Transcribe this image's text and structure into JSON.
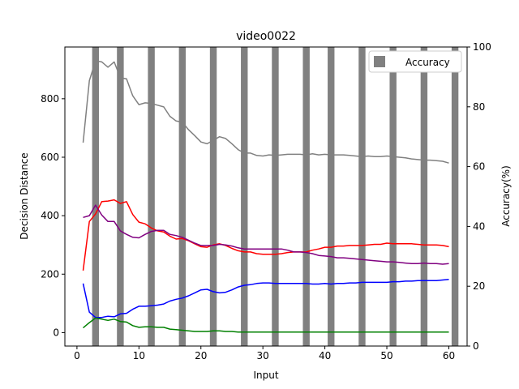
{
  "chart_data": {
    "type": "line",
    "title": "video0022",
    "xlabel": "Input",
    "ylabel": "Decision Distance",
    "ylabel_right": "Accuracy(%)",
    "xlim": [
      -1.95,
      62.95
    ],
    "ylim": [
      -46,
      977
    ],
    "ylim_right": [
      0,
      100
    ],
    "xticks": [
      0,
      10,
      20,
      30,
      40,
      50,
      60
    ],
    "yticks": [
      0,
      200,
      400,
      600,
      800
    ],
    "yticks_right": [
      0,
      20,
      40,
      60,
      80,
      100
    ],
    "legend": {
      "position": "top-right",
      "entries": [
        "Accuracy"
      ]
    },
    "x": [
      1,
      2,
      3,
      4,
      5,
      6,
      7,
      8,
      9,
      10,
      11,
      12,
      13,
      14,
      15,
      16,
      17,
      18,
      19,
      20,
      21,
      22,
      23,
      24,
      25,
      26,
      27,
      28,
      29,
      30,
      31,
      32,
      33,
      34,
      35,
      36,
      37,
      38,
      39,
      40,
      41,
      42,
      43,
      44,
      45,
      46,
      47,
      48,
      49,
      50,
      51,
      52,
      53,
      54,
      55,
      56,
      57,
      58,
      59,
      60
    ],
    "series": [
      {
        "color": "#808080",
        "values": [
          650,
          862,
          930,
          926,
          908,
          926,
          872,
          868,
          810,
          780,
          786,
          784,
          778,
          772,
          740,
          724,
          720,
          694,
          674,
          652,
          646,
          658,
          670,
          664,
          646,
          626,
          614,
          614,
          606,
          604,
          608,
          606,
          608,
          610,
          610,
          610,
          608,
          612,
          608,
          610,
          608,
          608,
          608,
          606,
          604,
          602,
          604,
          602,
          602,
          604,
          602,
          600,
          598,
          594,
          592,
          590,
          590,
          588,
          586,
          580
        ]
      },
      {
        "color": "#ff0000",
        "values": [
          212,
          380,
          406,
          448,
          450,
          454,
          442,
          448,
          404,
          378,
          372,
          358,
          348,
          344,
          330,
          320,
          322,
          314,
          304,
          294,
          292,
          300,
          304,
          298,
          288,
          280,
          276,
          276,
          270,
          268,
          268,
          268,
          270,
          274,
          276,
          276,
          276,
          282,
          286,
          292,
          292,
          296,
          296,
          298,
          298,
          298,
          300,
          302,
          302,
          306,
          304,
          304,
          304,
          304,
          302,
          300,
          300,
          300,
          298,
          294
        ]
      },
      {
        "color": "#800080",
        "values": [
          394,
          400,
          436,
          402,
          380,
          380,
          348,
          336,
          326,
          324,
          336,
          346,
          350,
          350,
          336,
          332,
          326,
          316,
          306,
          298,
          298,
          298,
          302,
          300,
          296,
          290,
          286,
          286,
          286,
          286,
          286,
          286,
          286,
          282,
          276,
          276,
          274,
          270,
          264,
          262,
          260,
          256,
          256,
          254,
          252,
          250,
          248,
          246,
          244,
          242,
          242,
          240,
          238,
          236,
          236,
          238,
          236,
          236,
          234,
          236
        ]
      },
      {
        "color": "#0000ff",
        "values": [
          168,
          70,
          52,
          52,
          56,
          54,
          64,
          66,
          80,
          90,
          90,
          92,
          94,
          98,
          108,
          114,
          118,
          126,
          136,
          146,
          148,
          140,
          136,
          138,
          146,
          156,
          162,
          164,
          168,
          170,
          170,
          168,
          168,
          168,
          168,
          168,
          168,
          166,
          166,
          168,
          166,
          168,
          168,
          170,
          170,
          172,
          172,
          172,
          172,
          172,
          174,
          174,
          176,
          176,
          178,
          178,
          178,
          178,
          180,
          182
        ]
      },
      {
        "color": "#008000",
        "values": [
          16,
          34,
          50,
          46,
          42,
          46,
          38,
          36,
          24,
          18,
          20,
          20,
          18,
          18,
          12,
          10,
          8,
          6,
          4,
          4,
          4,
          6,
          6,
          4,
          4,
          2,
          2,
          2,
          2,
          2,
          2,
          2,
          2,
          2,
          2,
          2,
          2,
          2,
          2,
          2,
          2,
          2,
          2,
          2,
          2,
          2,
          2,
          2,
          2,
          2,
          2,
          2,
          2,
          2,
          2,
          2,
          2,
          2,
          2,
          2
        ]
      }
    ],
    "accuracy_bars": {
      "color": "#808080",
      "x": [
        3,
        7,
        12,
        17,
        22,
        27,
        32,
        37,
        41,
        46,
        51,
        56,
        61
      ],
      "value": 100
    }
  }
}
